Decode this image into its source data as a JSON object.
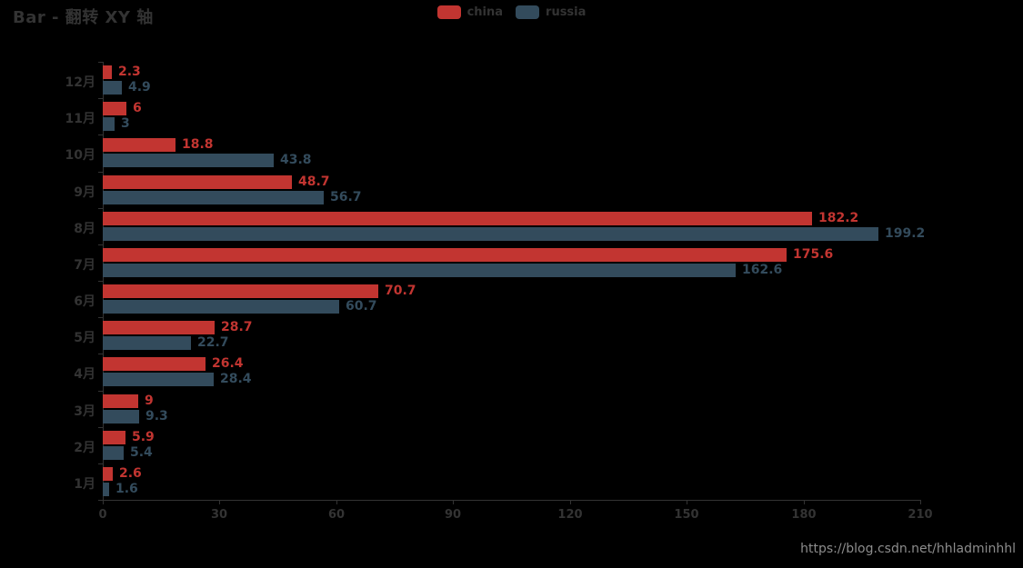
{
  "title": "Bar - 翻转 XY 轴",
  "watermark": "https://blog.csdn.net/hhladminhhl",
  "colors": {
    "background": "#000000",
    "title": "#333333",
    "axis": "#333333",
    "china": "#c23531",
    "russia": "#334b5c",
    "watermark": "#8c8c8c"
  },
  "legend": {
    "items": [
      {
        "label": "china",
        "color": "#c23531"
      },
      {
        "label": "russia",
        "color": "#334b5c"
      }
    ]
  },
  "chart_data": {
    "type": "bar",
    "orientation": "horizontal",
    "title": "Bar - 翻转 XY 轴",
    "categories_bottom_to_top": [
      "1月",
      "2月",
      "3月",
      "4月",
      "5月",
      "6月",
      "7月",
      "8月",
      "9月",
      "10月",
      "11月",
      "12月"
    ],
    "series": [
      {
        "name": "china",
        "color": "#c23531",
        "values": [
          2.6,
          5.9,
          9,
          26.4,
          28.7,
          70.7,
          175.6,
          182.2,
          48.7,
          18.8,
          6,
          2.3
        ]
      },
      {
        "name": "russia",
        "color": "#334b5c",
        "values": [
          1.6,
          5.4,
          9.3,
          28.4,
          22.7,
          60.7,
          162.6,
          199.2,
          56.7,
          43.8,
          3,
          4.9
        ]
      }
    ],
    "value_axis": {
      "min": 0,
      "max": 210,
      "ticks": [
        0,
        30,
        60,
        90,
        120,
        150,
        180,
        210
      ]
    },
    "grid": false,
    "legend_position": "top-center",
    "value_labels": "end-of-bar"
  }
}
